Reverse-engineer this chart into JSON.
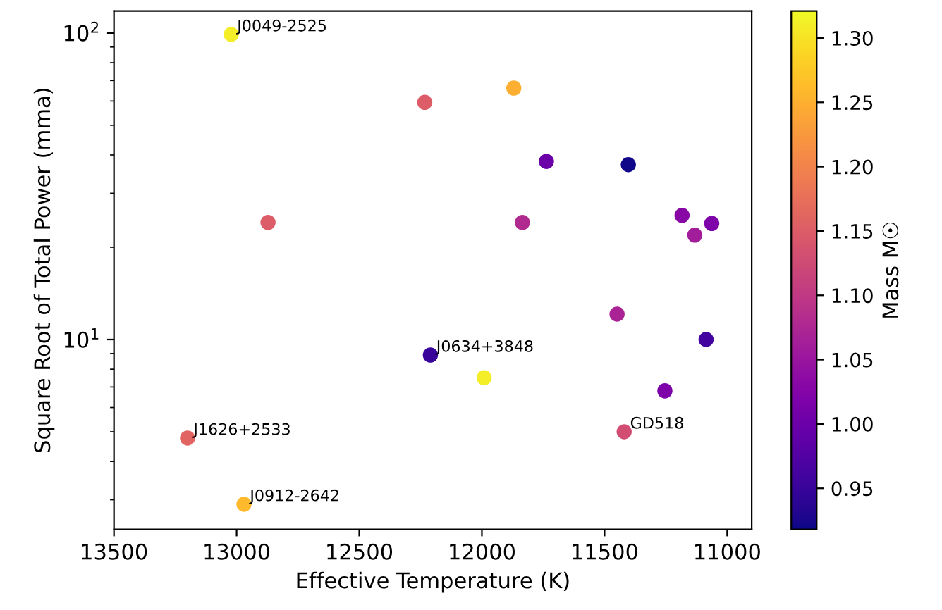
{
  "chart_data": {
    "type": "scatter",
    "xlabel": "Effective Temperature (K)",
    "ylabel": "Square Root of Total Power (mma)",
    "clabel": "Mass M☉",
    "x": [
      13022,
      12233,
      11870,
      11737,
      11403,
      12872,
      11835,
      11184,
      11132,
      11063,
      11449,
      11086,
      12210,
      11991,
      11254,
      11420,
      13200,
      12970
    ],
    "values": [
      98.9,
      59.4,
      66.1,
      38.1,
      37.2,
      24.1,
      24.1,
      25.4,
      21.9,
      23.9,
      12.1,
      10.0,
      8.9,
      7.5,
      6.8,
      5.0,
      4.77,
      2.9
    ],
    "cvalues": [
      1.31,
      1.15,
      1.25,
      1.0,
      0.92,
      1.15,
      1.08,
      1.03,
      1.06,
      1.02,
      1.07,
      0.96,
      0.95,
      1.31,
      1.02,
      1.13,
      1.16,
      1.26
    ],
    "annotations": [
      {
        "text": "J0049-2525",
        "x": 13022,
        "y": 98.9
      },
      {
        "text": "J0634+3848",
        "x": 12210,
        "y": 8.9
      },
      {
        "text": "J1626+2533",
        "x": 13200,
        "y": 4.77
      },
      {
        "text": "J0912-2642",
        "x": 12970,
        "y": 2.9
      },
      {
        "text": "GD518",
        "x": 11420,
        "y": 5.0
      }
    ],
    "log": "y",
    "xlim": [
      13500,
      10900
    ],
    "xticks": [
      13500,
      13000,
      12500,
      12000,
      11500,
      11000
    ],
    "ylim": [
      2.4,
      118
    ],
    "yticks": [
      {
        "value": 10,
        "label": "10$^{1}$"
      },
      {
        "value": 100,
        "label": "10$^{2}$"
      }
    ],
    "clim": [
      0.918,
      1.321
    ],
    "cticks": [
      0.95,
      {
        "value": 1.0,
        "label": "1.00"
      },
      1.05,
      {
        "value": 1.1,
        "label": "1.10"
      },
      1.15,
      {
        "value": 1.2,
        "label": "1.20"
      },
      1.25,
      {
        "value": 1.3,
        "label": "1.30"
      }
    ],
    "marker": "circle",
    "grid": false,
    "legend": false
  }
}
